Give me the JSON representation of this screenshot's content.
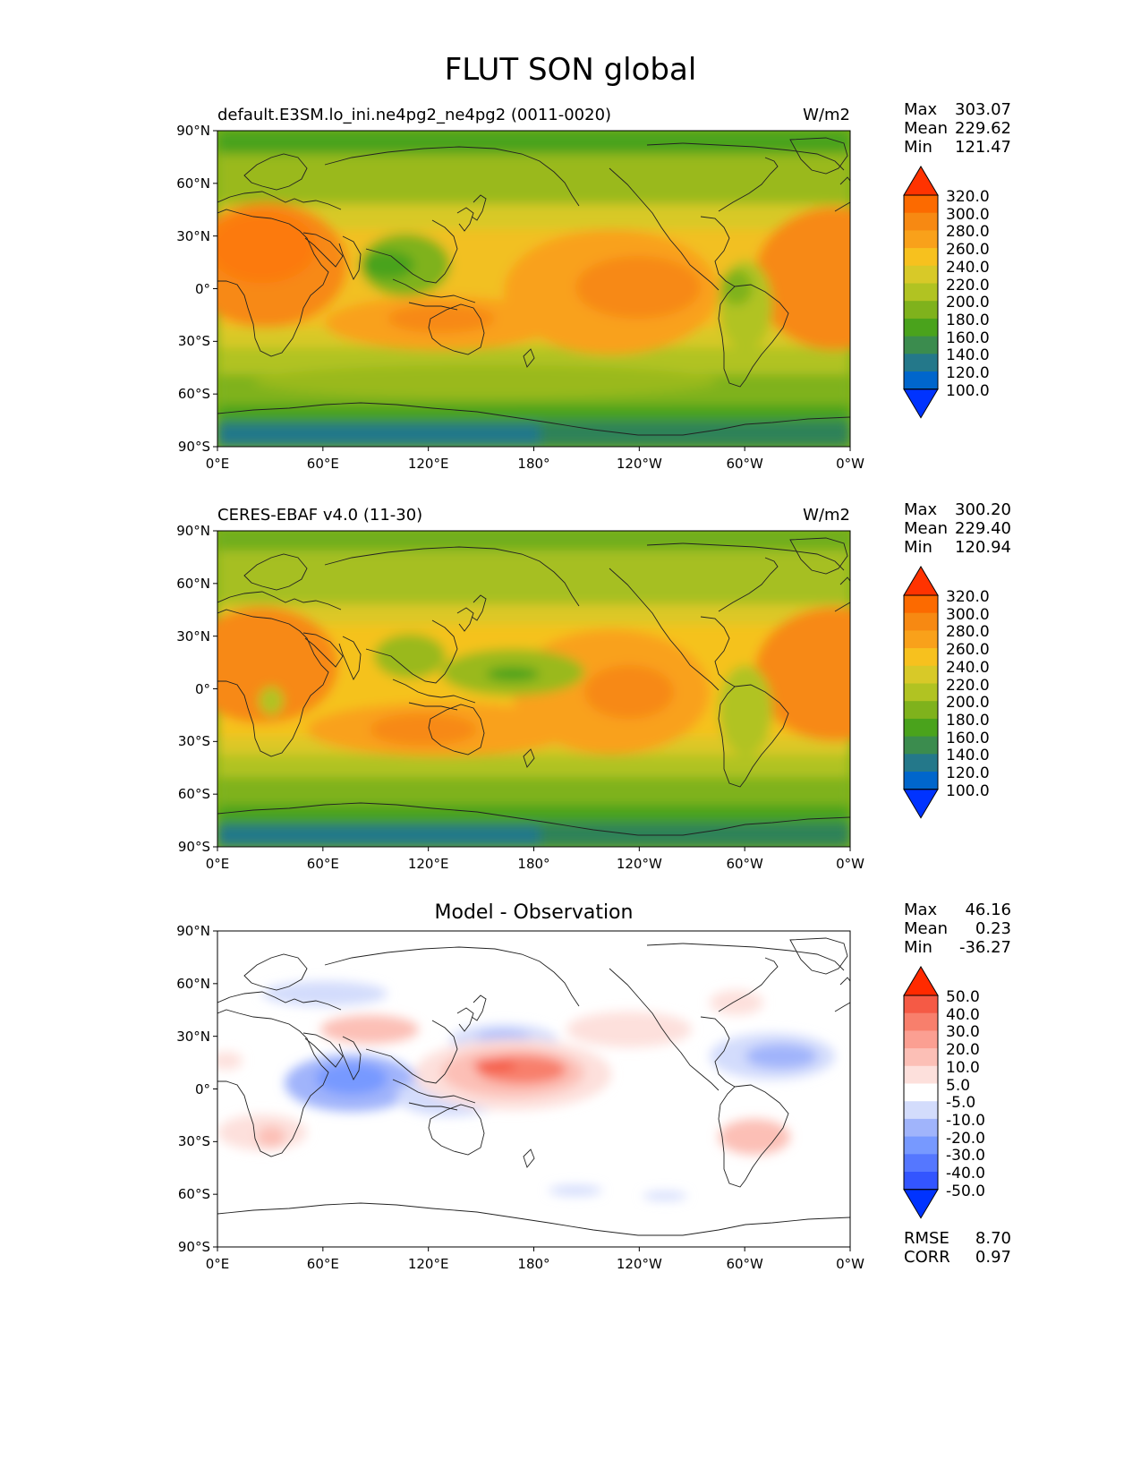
{
  "title": "FLUT SON global",
  "units": "W/m2",
  "x_ticks": [
    "0°E",
    "60°E",
    "120°E",
    "180°",
    "120°W",
    "60°W",
    "0°W"
  ],
  "y_ticks": [
    "90°N",
    "60°N",
    "30°N",
    "0°",
    "30°S",
    "60°S",
    "90°S"
  ],
  "stat_labels": {
    "max": "Max",
    "mean": "Mean",
    "min": "Min",
    "rmse": "RMSE",
    "corr": "CORR"
  },
  "panels": [
    {
      "title": "default.E3SM.lo_ini.ne4pg2_ne4pg2 (0011-0020)",
      "units_label": "W/m2",
      "stats": {
        "max": "303.07",
        "mean": "229.62",
        "min": "121.47"
      },
      "colorbar_labels": [
        "320.0",
        "300.0",
        "280.0",
        "260.0",
        "240.0",
        "220.0",
        "200.0",
        "180.0",
        "160.0",
        "140.0",
        "120.0",
        "100.0"
      ]
    },
    {
      "title": "CERES-EBAF v4.0 (11-30)",
      "units_label": "W/m2",
      "stats": {
        "max": "300.20",
        "mean": "229.40",
        "min": "120.94"
      },
      "colorbar_labels": [
        "320.0",
        "300.0",
        "280.0",
        "260.0",
        "240.0",
        "220.0",
        "200.0",
        "180.0",
        "160.0",
        "140.0",
        "120.0",
        "100.0"
      ]
    },
    {
      "title": "Model - Observation",
      "stats": {
        "max": "46.16",
        "mean": "0.23",
        "min": "-36.27"
      },
      "metrics": {
        "rmse": "8.70",
        "corr": "0.97"
      },
      "colorbar_labels": [
        "50.0",
        "40.0",
        "30.0",
        "20.0",
        "10.0",
        "5.0",
        "-5.0",
        "-10.0",
        "-20.0",
        "-30.0",
        "-40.0",
        "-50.0"
      ]
    }
  ],
  "colors": {
    "field_scale": [
      "#0033ff",
      "#0066cc",
      "#24788a",
      "#3b8c4e",
      "#4aa31c",
      "#7fb21c",
      "#b1c322",
      "#d8c928",
      "#f7c11e",
      "#f9a11a",
      "#f78912",
      "#fc6a00",
      "#ff3300"
    ],
    "diff_scale": [
      "#0033ff",
      "#3355ff",
      "#5577ff",
      "#7799ff",
      "#a0b4fb",
      "#d3dcfc",
      "#ffffff",
      "#fde0dc",
      "#fcbfb6",
      "#fb9f92",
      "#f87f6c",
      "#f55a45",
      "#ff2a00"
    ]
  }
}
